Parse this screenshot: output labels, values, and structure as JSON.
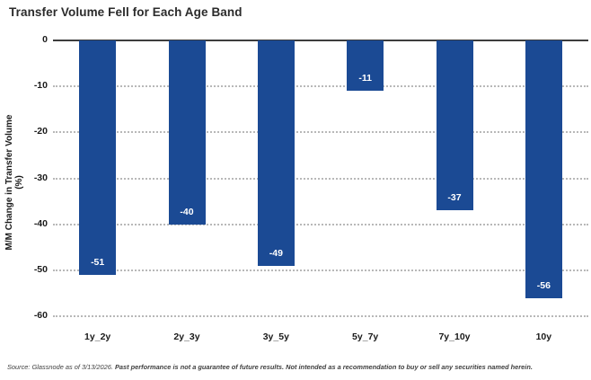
{
  "chart_data": {
    "type": "bar",
    "title": "Transfer Volume Fell for Each Age Band",
    "categories": [
      "1y_2y",
      "2y_3y",
      "3y_5y",
      "5y_7y",
      "7y_10y",
      "10y"
    ],
    "values": [
      -51,
      -40,
      -49,
      -11,
      -37,
      -56
    ],
    "xlabel": "",
    "ylabel": "M/M Change in Transfer Volume (%)",
    "ylim": [
      -60,
      0
    ],
    "yticks": [
      0,
      -10,
      -20,
      -30,
      -40,
      -50,
      -60
    ],
    "grid": "horizontal-dotted",
    "legend_position": "none",
    "bar_color": "#1b4a94",
    "value_label_color": "#ffffff",
    "value_labels": [
      "-51",
      "-40",
      "-49",
      "-11",
      "-37",
      "-56"
    ]
  },
  "source": {
    "prefix": "Source: Glassnode as of 3/13/2026. ",
    "disclaimer": "Past performance is not a guarantee of future results. Not intended as a recommendation to buy or sell any securities named herein."
  }
}
